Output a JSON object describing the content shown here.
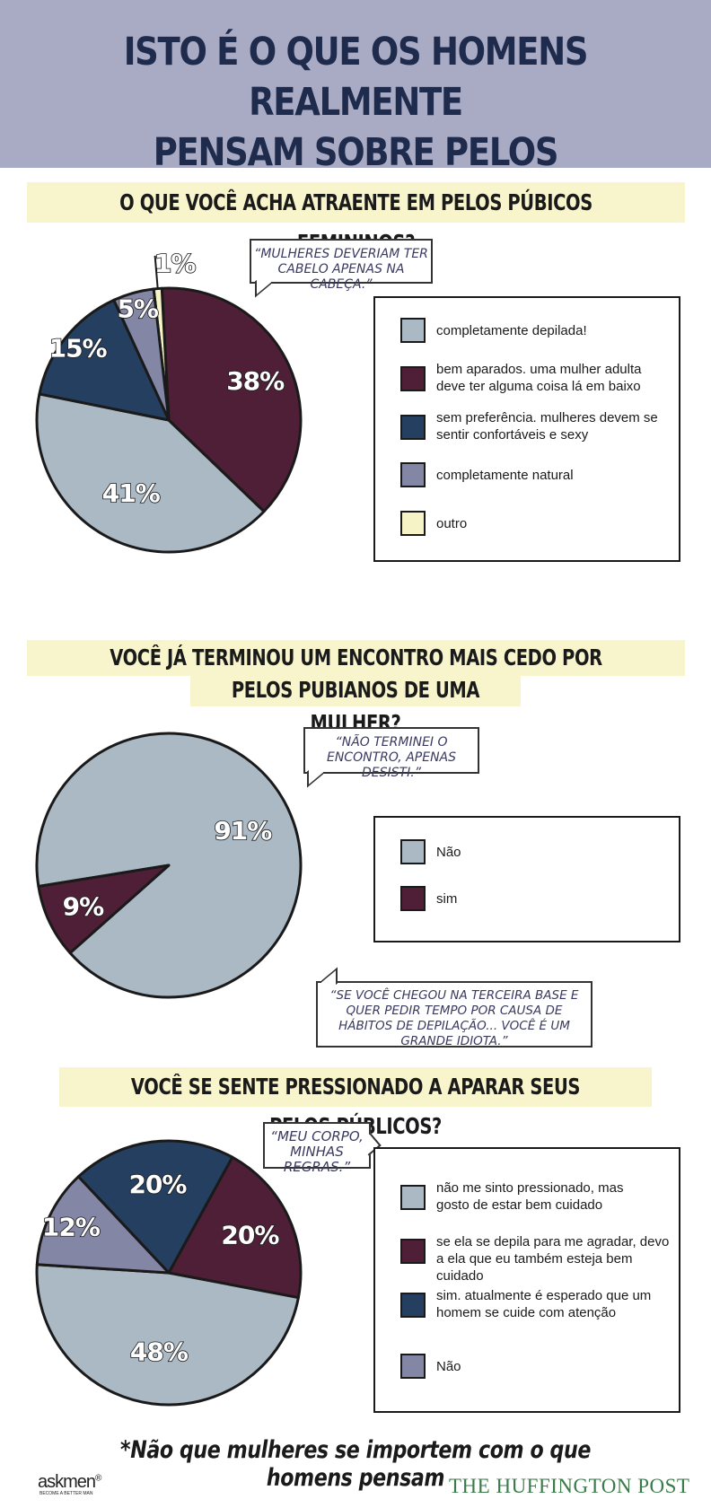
{
  "header": {
    "title_line1": "Isto é o que os homens realmente",
    "title_line2": "pensam sobre pelos pubianos*",
    "background": "#a8abc3"
  },
  "colors": {
    "light_blue": "#aab9c4",
    "maroon": "#4e1f37",
    "navy": "#253f61",
    "slate": "#8486a6",
    "cream": "#f6f3c7",
    "band": "#f8f5cc"
  },
  "sections": [
    {
      "question": "O que você acha atraente em pelos púbicos femininos?",
      "quote": "“Mulheres deveriam ter cabelo apenas na cabeça.”",
      "legend": [
        "completamente depilada!",
        "bem aparados. uma mulher adulta deve ter alguma coisa lá em baixo",
        "sem preferência. mulheres devem se sentir confortáveis e sexy",
        "completamente natural",
        "outro"
      ]
    },
    {
      "question_line1": "Você já terminou um encontro mais cedo por causa da escolha de",
      "question_line2": "pelos pubianos de uma mulher?",
      "quote": "“Não terminei o encontro, apenas desisti.”",
      "quote2": "“Se você chegou na terceira base e quer pedir tempo por causa de hábitos de depilação... você é um grande idiota.”",
      "legend": [
        "Não",
        "sim"
      ]
    },
    {
      "question": "Você se sente pressionado a aparar seus pelos públicos?",
      "quote": "“Meu corpo, minhas regras.”",
      "legend": [
        "não me sinto pressionado, mas gosto de estar bem cuidado",
        "se ela se depila para me agradar, devo a ela que eu também esteja bem cuidado",
        "sim. atualmente é esperado que um homem se cuide com atenção",
        "Não"
      ]
    }
  ],
  "chart_data": [
    {
      "type": "pie",
      "title": "O que você acha atraente em pelos púbicos femininos?",
      "labels": [
        "completamente depilada!",
        "bem aparados. uma mulher adulta deve ter alguma coisa lá em baixo",
        "outro",
        "completamente natural",
        "sem preferência. mulheres devem se sentir confortáveis e sexy"
      ],
      "values": [
        41,
        38,
        1,
        5,
        15
      ],
      "value_labels": [
        "41%",
        "38%",
        "1%",
        "5%",
        "15%"
      ],
      "colors": [
        "#aab9c4",
        "#4e1f37",
        "#f6f3c7",
        "#8486a6",
        "#253f61"
      ]
    },
    {
      "type": "pie",
      "title": "Você já terminou um encontro mais cedo por causa da escolha de pelos pubianos de uma mulher?",
      "labels": [
        "Não",
        "sim"
      ],
      "values": [
        91,
        9
      ],
      "value_labels": [
        "91%",
        "9%"
      ],
      "colors": [
        "#aab9c4",
        "#4e1f37"
      ]
    },
    {
      "type": "pie",
      "title": "Você se sente pressionado a aparar seus pelos públicos?",
      "labels": [
        "não me sinto pressionado, mas gosto de estar bem cuidado",
        "se ela se depila para me agradar, devo a ela que eu também esteja bem cuidado",
        "sim. atualmente é esperado que um homem se cuide com atenção",
        "Não"
      ],
      "values": [
        48,
        20,
        20,
        12
      ],
      "value_labels": [
        "48%",
        "20%",
        "20%",
        "12%"
      ],
      "colors": [
        "#aab9c4",
        "#4e1f37",
        "#253f61",
        "#8486a6"
      ]
    }
  ],
  "footer": {
    "note": "*Não que mulheres se importem com o que homens pensam",
    "askmen": "askmen",
    "askmen_reg": "®",
    "askmen_tagline": "BECOME A BETTER MAN",
    "huffpo": "THE HUFFINGTON POST"
  }
}
